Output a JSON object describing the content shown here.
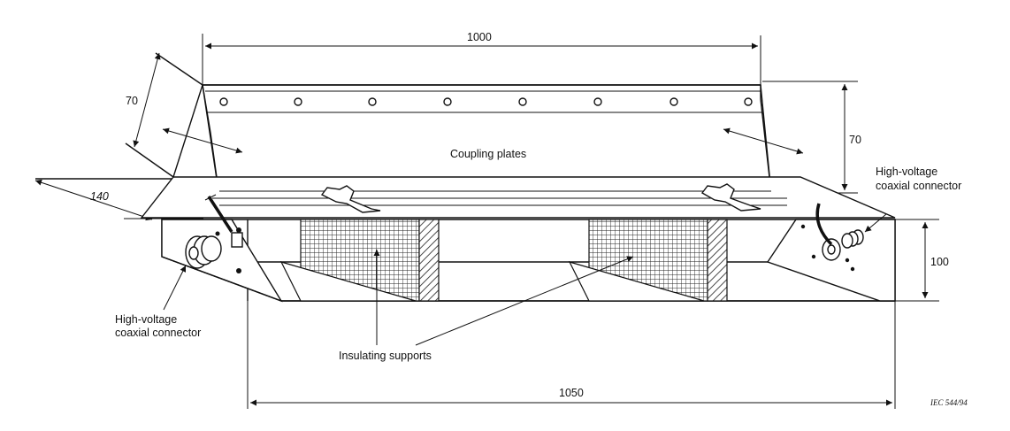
{
  "labels": {
    "coupling_plates": "Coupling plates",
    "hv_connector_right_line1": "High-voltage",
    "hv_connector_right_line2": "coaxial connector",
    "hv_connector_left_line1": "High-voltage",
    "hv_connector_left_line2": "coaxial connector",
    "insulating_supports": "Insulating supports"
  },
  "dimensions": {
    "plate_length": "1000",
    "plate_height_left": "70",
    "plate_height_right": "70",
    "plate_depth": "140",
    "base_height": "100",
    "base_length": "1050"
  },
  "reference": "IEC  544/94"
}
